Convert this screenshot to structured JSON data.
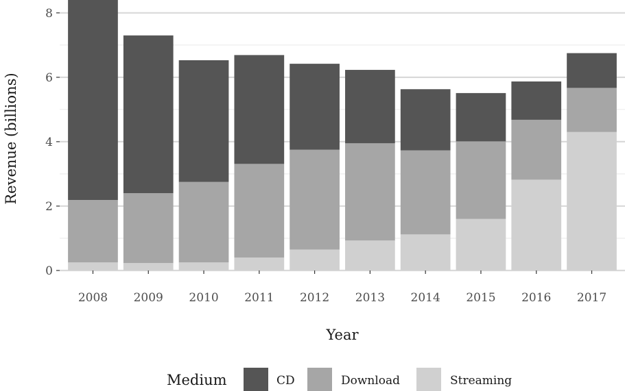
{
  "chart_data": {
    "type": "bar",
    "stacked": true,
    "categories": [
      "2008",
      "2009",
      "2010",
      "2011",
      "2012",
      "2013",
      "2014",
      "2015",
      "2016",
      "2017"
    ],
    "series": [
      {
        "name": "Streaming",
        "color": "#d0d0d0",
        "values": [
          0.25,
          0.23,
          0.25,
          0.4,
          0.65,
          0.93,
          1.12,
          1.6,
          2.82,
          4.3
        ]
      },
      {
        "name": "Download",
        "color": "#a6a6a6",
        "values": [
          1.94,
          2.17,
          2.5,
          2.91,
          3.1,
          3.02,
          2.61,
          2.41,
          1.86,
          1.37
        ]
      },
      {
        "name": "CD",
        "color": "#555555",
        "values": [
          6.21,
          4.9,
          3.78,
          3.38,
          2.67,
          2.28,
          1.9,
          1.5,
          1.19,
          1.08
        ]
      }
    ],
    "title": "",
    "xlabel": "Year",
    "ylabel": "Revenue (billions)",
    "ylim": [
      0,
      8.4
    ],
    "yticks": [
      0,
      2,
      4,
      6,
      8
    ],
    "grid": true,
    "legend": {
      "title": "Medium",
      "position": "bottom",
      "order": [
        "CD",
        "Download",
        "Streaming"
      ]
    }
  }
}
